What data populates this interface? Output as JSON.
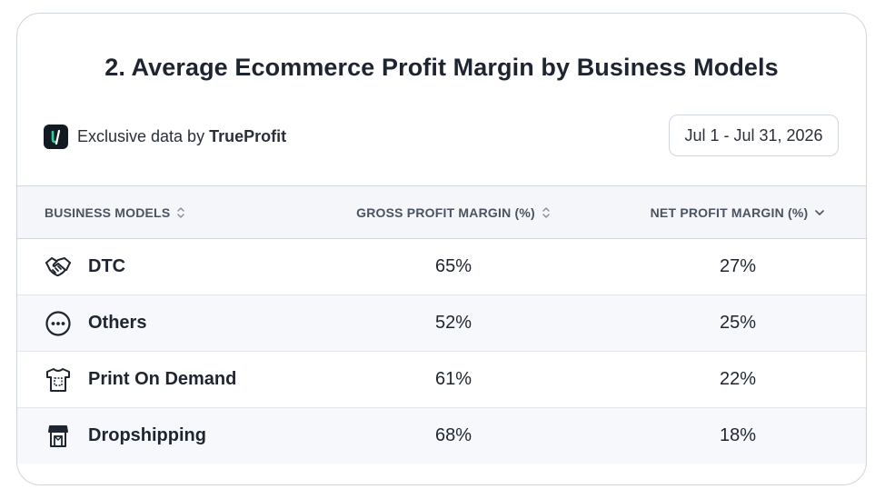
{
  "title": "2. Average Ecommerce Profit Margin by Business Models",
  "brand": {
    "prefix": "Exclusive data by",
    "name": "TrueProfit",
    "logo_icon": "trueprofit-logo-icon"
  },
  "date_range": "Jul 1 - Jul 31, 2026",
  "table": {
    "headers": {
      "model": "BUSINESS MODELS",
      "gross": "GROSS PROFIT MARGIN (%)",
      "net": "NET PROFIT MARGIN (%)"
    },
    "sort_icons": {
      "model": "sort-icon",
      "gross": "sort-icon",
      "net": "chevron-down-icon"
    },
    "rows": [
      {
        "model": "DTC",
        "icon": "handshake-icon",
        "gross": "65%",
        "net": "27%"
      },
      {
        "model": "Others",
        "icon": "more-icon",
        "gross": "52%",
        "net": "25%"
      },
      {
        "model": "Print On Demand",
        "icon": "tshirt-icon",
        "gross": "61%",
        "net": "22%"
      },
      {
        "model": "Dropshipping",
        "icon": "shop-icon",
        "gross": "68%",
        "net": "18%"
      }
    ]
  },
  "colors": {
    "accent": "#1fd3a0",
    "text": "#1f2530",
    "header_bg": "#f4f6f9"
  }
}
